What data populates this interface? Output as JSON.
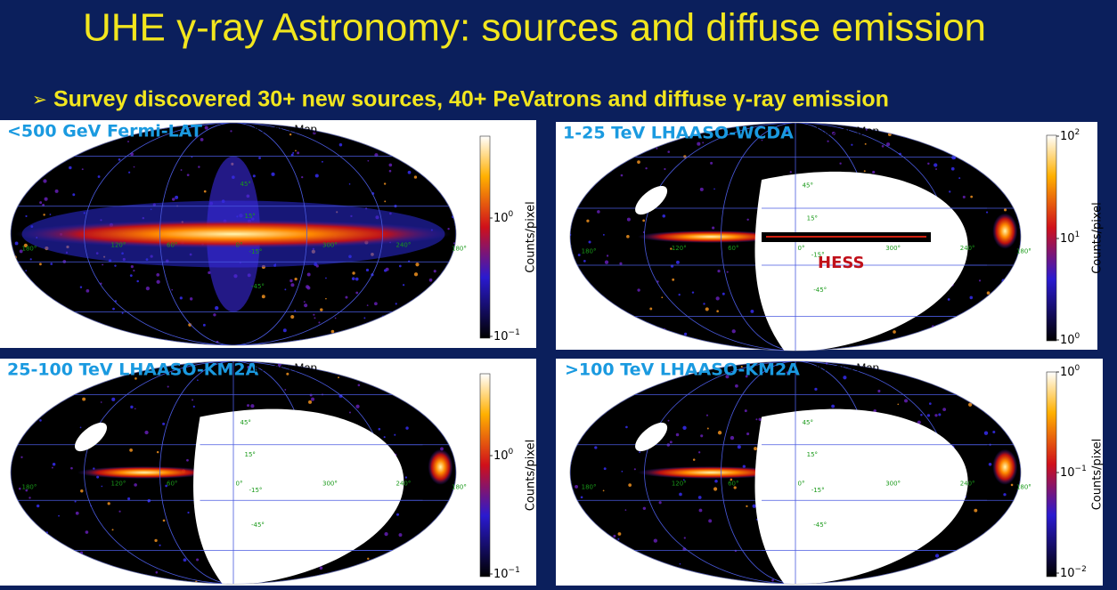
{
  "header": {
    "title": "UHE γ-ray Astronomy: sources and diffuse emission"
  },
  "bullet": {
    "text": "Survey discovered 30+ new sources,  40+ PeVatrons and diffuse γ-ray emission"
  },
  "panels": [
    {
      "label": "<500 GeV  Fermi-LAT",
      "map_title": "Excess Map",
      "colorbar": {
        "axis_label": "Counts/pixel",
        "ticks": [
          {
            "base": "10",
            "exp": "0"
          },
          {
            "base": "10",
            "exp": "−1"
          }
        ]
      },
      "grid_labels": [
        "45°",
        "15°",
        "0°",
        "-15°",
        "-45°",
        "300°",
        "240°",
        "180°",
        "120°",
        "60°",
        "180°"
      ]
    },
    {
      "label": "1-25 TeV LHAASO-WCDA",
      "map_title": "Excess Map",
      "colorbar": {
        "axis_label": "Counts/pixel",
        "ticks": [
          {
            "base": "10",
            "exp": "2"
          },
          {
            "base": "10",
            "exp": "1"
          },
          {
            "base": "10",
            "exp": "0"
          }
        ]
      },
      "grid_labels": [
        "45°",
        "15°",
        "0°",
        "-15°",
        "-45°",
        "300°",
        "240°",
        "180°",
        "120°",
        "60°",
        "180°"
      ],
      "annotation": "HESS"
    },
    {
      "label": "25-100 TeV LHAASO-KM2A",
      "map_title": "Excess Map",
      "colorbar": {
        "axis_label": "Counts/pixel",
        "ticks": [
          {
            "base": "10",
            "exp": "0"
          },
          {
            "base": "10",
            "exp": "−1"
          }
        ]
      },
      "grid_labels": [
        "45°",
        "15°",
        "0°",
        "-15°",
        "-45°",
        "300°",
        "240°",
        "180°",
        "120°",
        "60°",
        "180°"
      ]
    },
    {
      "label": ">100 TeV LHAASO-KM2A",
      "map_title": "Excess Map",
      "colorbar": {
        "axis_label": "Counts/pixel",
        "ticks": [
          {
            "base": "10",
            "exp": "0"
          },
          {
            "base": "10",
            "exp": "−1"
          },
          {
            "base": "10",
            "exp": "−2"
          }
        ]
      },
      "grid_labels": [
        "45°",
        "15°",
        "0°",
        "-15°",
        "-45°",
        "300°",
        "240°",
        "180°",
        "120°",
        "60°",
        "180°"
      ]
    }
  ]
}
